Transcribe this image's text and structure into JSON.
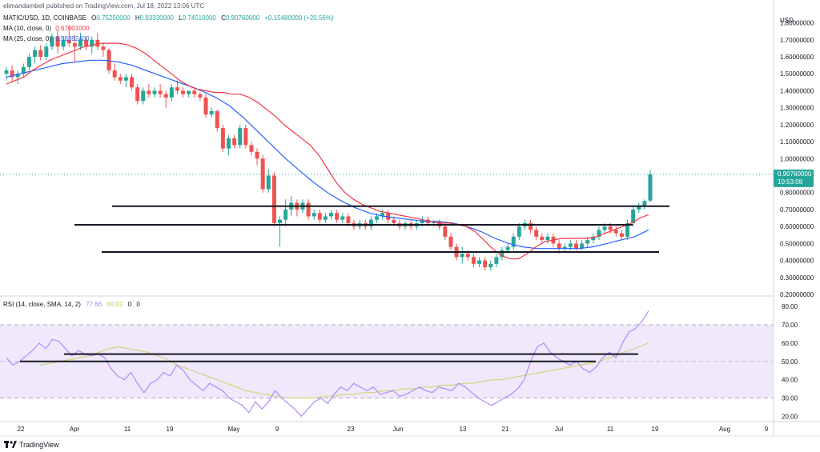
{
  "header": {
    "published": "elimandambell published on TradingView.com, Jul 18, 2022 13:06 UTC",
    "symbol": "MATIC/USD, 1D, COINBASE",
    "o_label": "O",
    "o_val": "0.75250000",
    "h_label": "H",
    "h_val": "0.93330000",
    "l_label": "L",
    "l_val": "0.74510000",
    "c_label": "C",
    "c_val": "0.90760000",
    "change": "+0.15480000 (+20.56%)",
    "ma10_label": "MA (10, close, 0)",
    "ma10_val": "0.67001000",
    "ma25_label": "MA (25, close, 0)",
    "ma25_val": "0.58392400"
  },
  "price_axis": {
    "currency": "USD",
    "ticks": [
      "1.80000000",
      "1.70000000",
      "1.60000000",
      "1.50000000",
      "1.40000000",
      "1.30000000",
      "1.20000000",
      "1.10000000",
      "1.00000000",
      "0.80000000",
      "0.70000000",
      "0.60000000",
      "0.50000000",
      "0.40000000",
      "0.30000000",
      "0.20000000"
    ],
    "last_price": "0.90760000",
    "countdown": "10:53:08"
  },
  "rsi": {
    "label": "RSI (14, close, SMA, 14, 2)",
    "val1": "77.66",
    "val2": "60.02",
    "val3": "0",
    "val4": "0",
    "ticks": [
      "80.00",
      "70.00",
      "60.00",
      "50.00",
      "40.00",
      "30.00",
      "20.00"
    ]
  },
  "time_axis": {
    "ticks": [
      "22",
      "Apr",
      "11",
      "19",
      "May",
      "9",
      "23",
      "Jun",
      "13",
      "21",
      "Jul",
      "11",
      "19",
      "Aug",
      "9"
    ]
  },
  "branding": {
    "logo_text": "TradingView"
  },
  "colors": {
    "up": "#26a69a",
    "down": "#ef5350",
    "ma10": "#f23645",
    "ma25": "#2962ff",
    "rsi_line": "#b388ff",
    "rsi_sma": "#d4d47a",
    "rsi_band": "#efe9fb",
    "price_line": "#26a69a"
  },
  "chart_data": [
    {
      "type": "candlestick",
      "title": "MATIC/USD, 1D, COINBASE",
      "ylabel": "USD",
      "ylim": [
        0.2,
        1.85
      ],
      "candles": [
        {
          "o": 1.5,
          "h": 1.54,
          "l": 1.46,
          "c": 1.52
        },
        {
          "o": 1.52,
          "h": 1.55,
          "l": 1.45,
          "c": 1.48
        },
        {
          "o": 1.48,
          "h": 1.52,
          "l": 1.44,
          "c": 1.5
        },
        {
          "o": 1.5,
          "h": 1.56,
          "l": 1.48,
          "c": 1.54
        },
        {
          "o": 1.54,
          "h": 1.62,
          "l": 1.52,
          "c": 1.6
        },
        {
          "o": 1.6,
          "h": 1.66,
          "l": 1.56,
          "c": 1.64
        },
        {
          "o": 1.64,
          "h": 1.67,
          "l": 1.58,
          "c": 1.6
        },
        {
          "o": 1.6,
          "h": 1.68,
          "l": 1.58,
          "c": 1.66
        },
        {
          "o": 1.66,
          "h": 1.74,
          "l": 1.64,
          "c": 1.72
        },
        {
          "o": 1.72,
          "h": 1.76,
          "l": 1.62,
          "c": 1.66
        },
        {
          "o": 1.66,
          "h": 1.72,
          "l": 1.64,
          "c": 1.7
        },
        {
          "o": 1.7,
          "h": 1.78,
          "l": 1.66,
          "c": 1.68
        },
        {
          "o": 1.68,
          "h": 1.73,
          "l": 1.57,
          "c": 1.66
        },
        {
          "o": 1.66,
          "h": 1.74,
          "l": 1.64,
          "c": 1.7
        },
        {
          "o": 1.7,
          "h": 1.72,
          "l": 1.64,
          "c": 1.66
        },
        {
          "o": 1.66,
          "h": 1.72,
          "l": 1.62,
          "c": 1.7
        },
        {
          "o": 1.7,
          "h": 1.74,
          "l": 1.64,
          "c": 1.66
        },
        {
          "o": 1.66,
          "h": 1.68,
          "l": 1.6,
          "c": 1.64
        },
        {
          "o": 1.64,
          "h": 1.65,
          "l": 1.5,
          "c": 1.52
        },
        {
          "o": 1.52,
          "h": 1.56,
          "l": 1.46,
          "c": 1.48
        },
        {
          "o": 1.48,
          "h": 1.5,
          "l": 1.44,
          "c": 1.46
        },
        {
          "o": 1.46,
          "h": 1.5,
          "l": 1.42,
          "c": 1.48
        },
        {
          "o": 1.48,
          "h": 1.5,
          "l": 1.4,
          "c": 1.42
        },
        {
          "o": 1.42,
          "h": 1.44,
          "l": 1.32,
          "c": 1.34
        },
        {
          "o": 1.34,
          "h": 1.42,
          "l": 1.32,
          "c": 1.4
        },
        {
          "o": 1.4,
          "h": 1.44,
          "l": 1.36,
          "c": 1.38
        },
        {
          "o": 1.38,
          "h": 1.42,
          "l": 1.36,
          "c": 1.4
        },
        {
          "o": 1.4,
          "h": 1.44,
          "l": 1.36,
          "c": 1.38
        },
        {
          "o": 1.38,
          "h": 1.4,
          "l": 1.3,
          "c": 1.36
        },
        {
          "o": 1.36,
          "h": 1.44,
          "l": 1.34,
          "c": 1.42
        },
        {
          "o": 1.42,
          "h": 1.46,
          "l": 1.38,
          "c": 1.4
        },
        {
          "o": 1.4,
          "h": 1.42,
          "l": 1.36,
          "c": 1.38
        },
        {
          "o": 1.38,
          "h": 1.4,
          "l": 1.36,
          "c": 1.4
        },
        {
          "o": 1.4,
          "h": 1.42,
          "l": 1.36,
          "c": 1.38
        },
        {
          "o": 1.38,
          "h": 1.39,
          "l": 1.34,
          "c": 1.36
        },
        {
          "o": 1.36,
          "h": 1.38,
          "l": 1.24,
          "c": 1.26
        },
        {
          "o": 1.26,
          "h": 1.3,
          "l": 1.24,
          "c": 1.28
        },
        {
          "o": 1.28,
          "h": 1.29,
          "l": 1.16,
          "c": 1.18
        },
        {
          "o": 1.18,
          "h": 1.2,
          "l": 1.04,
          "c": 1.06
        },
        {
          "o": 1.06,
          "h": 1.14,
          "l": 1.02,
          "c": 1.12
        },
        {
          "o": 1.12,
          "h": 1.14,
          "l": 1.06,
          "c": 1.08
        },
        {
          "o": 1.08,
          "h": 1.2,
          "l": 1.06,
          "c": 1.18
        },
        {
          "o": 1.18,
          "h": 1.2,
          "l": 1.06,
          "c": 1.08
        },
        {
          "o": 1.08,
          "h": 1.1,
          "l": 1.02,
          "c": 1.04
        },
        {
          "o": 1.04,
          "h": 1.06,
          "l": 0.96,
          "c": 1.0
        },
        {
          "o": 1.0,
          "h": 1.02,
          "l": 0.8,
          "c": 0.82
        },
        {
          "o": 0.82,
          "h": 0.94,
          "l": 0.8,
          "c": 0.9
        },
        {
          "o": 0.9,
          "h": 0.92,
          "l": 0.6,
          "c": 0.62
        },
        {
          "o": 0.62,
          "h": 0.66,
          "l": 0.48,
          "c": 0.64
        },
        {
          "o": 0.64,
          "h": 0.76,
          "l": 0.6,
          "c": 0.7
        },
        {
          "o": 0.7,
          "h": 0.78,
          "l": 0.66,
          "c": 0.74
        },
        {
          "o": 0.74,
          "h": 0.76,
          "l": 0.66,
          "c": 0.7
        },
        {
          "o": 0.7,
          "h": 0.76,
          "l": 0.68,
          "c": 0.74
        },
        {
          "o": 0.74,
          "h": 0.76,
          "l": 0.64,
          "c": 0.66
        },
        {
          "o": 0.66,
          "h": 0.7,
          "l": 0.64,
          "c": 0.68
        },
        {
          "o": 0.68,
          "h": 0.7,
          "l": 0.62,
          "c": 0.64
        },
        {
          "o": 0.64,
          "h": 0.68,
          "l": 0.62,
          "c": 0.66
        },
        {
          "o": 0.66,
          "h": 0.7,
          "l": 0.64,
          "c": 0.68
        },
        {
          "o": 0.68,
          "h": 0.7,
          "l": 0.62,
          "c": 0.64
        },
        {
          "o": 0.64,
          "h": 0.68,
          "l": 0.62,
          "c": 0.66
        },
        {
          "o": 0.66,
          "h": 0.68,
          "l": 0.6,
          "c": 0.62
        },
        {
          "o": 0.62,
          "h": 0.64,
          "l": 0.58,
          "c": 0.6
        },
        {
          "o": 0.6,
          "h": 0.64,
          "l": 0.58,
          "c": 0.62
        },
        {
          "o": 0.62,
          "h": 0.64,
          "l": 0.58,
          "c": 0.6
        },
        {
          "o": 0.6,
          "h": 0.66,
          "l": 0.58,
          "c": 0.64
        },
        {
          "o": 0.64,
          "h": 0.68,
          "l": 0.62,
          "c": 0.66
        },
        {
          "o": 0.66,
          "h": 0.7,
          "l": 0.64,
          "c": 0.68
        },
        {
          "o": 0.68,
          "h": 0.7,
          "l": 0.62,
          "c": 0.64
        },
        {
          "o": 0.64,
          "h": 0.66,
          "l": 0.6,
          "c": 0.62
        },
        {
          "o": 0.62,
          "h": 0.64,
          "l": 0.58,
          "c": 0.6
        },
        {
          "o": 0.6,
          "h": 0.63,
          "l": 0.58,
          "c": 0.62
        },
        {
          "o": 0.62,
          "h": 0.64,
          "l": 0.58,
          "c": 0.6
        },
        {
          "o": 0.6,
          "h": 0.64,
          "l": 0.58,
          "c": 0.62
        },
        {
          "o": 0.62,
          "h": 0.66,
          "l": 0.6,
          "c": 0.64
        },
        {
          "o": 0.64,
          "h": 0.66,
          "l": 0.6,
          "c": 0.62
        },
        {
          "o": 0.62,
          "h": 0.64,
          "l": 0.6,
          "c": 0.63
        },
        {
          "o": 0.63,
          "h": 0.64,
          "l": 0.58,
          "c": 0.6
        },
        {
          "o": 0.6,
          "h": 0.61,
          "l": 0.52,
          "c": 0.54
        },
        {
          "o": 0.54,
          "h": 0.56,
          "l": 0.46,
          "c": 0.48
        },
        {
          "o": 0.48,
          "h": 0.5,
          "l": 0.4,
          "c": 0.42
        },
        {
          "o": 0.42,
          "h": 0.48,
          "l": 0.38,
          "c": 0.44
        },
        {
          "o": 0.44,
          "h": 0.46,
          "l": 0.4,
          "c": 0.42
        },
        {
          "o": 0.42,
          "h": 0.44,
          "l": 0.36,
          "c": 0.38
        },
        {
          "o": 0.38,
          "h": 0.42,
          "l": 0.36,
          "c": 0.4
        },
        {
          "o": 0.4,
          "h": 0.42,
          "l": 0.34,
          "c": 0.36
        },
        {
          "o": 0.36,
          "h": 0.4,
          "l": 0.34,
          "c": 0.38
        },
        {
          "o": 0.38,
          "h": 0.44,
          "l": 0.36,
          "c": 0.42
        },
        {
          "o": 0.42,
          "h": 0.48,
          "l": 0.4,
          "c": 0.46
        },
        {
          "o": 0.46,
          "h": 0.5,
          "l": 0.44,
          "c": 0.48
        },
        {
          "o": 0.48,
          "h": 0.56,
          "l": 0.46,
          "c": 0.54
        },
        {
          "o": 0.54,
          "h": 0.62,
          "l": 0.52,
          "c": 0.6
        },
        {
          "o": 0.6,
          "h": 0.64,
          "l": 0.58,
          "c": 0.62
        },
        {
          "o": 0.62,
          "h": 0.64,
          "l": 0.56,
          "c": 0.58
        },
        {
          "o": 0.58,
          "h": 0.6,
          "l": 0.52,
          "c": 0.54
        },
        {
          "o": 0.54,
          "h": 0.56,
          "l": 0.5,
          "c": 0.52
        },
        {
          "o": 0.52,
          "h": 0.56,
          "l": 0.5,
          "c": 0.54
        },
        {
          "o": 0.54,
          "h": 0.56,
          "l": 0.48,
          "c": 0.5
        },
        {
          "o": 0.5,
          "h": 0.52,
          "l": 0.44,
          "c": 0.47
        },
        {
          "o": 0.47,
          "h": 0.5,
          "l": 0.45,
          "c": 0.48
        },
        {
          "o": 0.48,
          "h": 0.52,
          "l": 0.46,
          "c": 0.5
        },
        {
          "o": 0.5,
          "h": 0.52,
          "l": 0.46,
          "c": 0.47
        },
        {
          "o": 0.47,
          "h": 0.52,
          "l": 0.46,
          "c": 0.5
        },
        {
          "o": 0.5,
          "h": 0.54,
          "l": 0.48,
          "c": 0.52
        },
        {
          "o": 0.52,
          "h": 0.56,
          "l": 0.5,
          "c": 0.54
        },
        {
          "o": 0.54,
          "h": 0.6,
          "l": 0.52,
          "c": 0.58
        },
        {
          "o": 0.58,
          "h": 0.62,
          "l": 0.56,
          "c": 0.6
        },
        {
          "o": 0.6,
          "h": 0.62,
          "l": 0.56,
          "c": 0.58
        },
        {
          "o": 0.58,
          "h": 0.6,
          "l": 0.54,
          "c": 0.56
        },
        {
          "o": 0.56,
          "h": 0.58,
          "l": 0.52,
          "c": 0.54
        },
        {
          "o": 0.54,
          "h": 0.64,
          "l": 0.52,
          "c": 0.62
        },
        {
          "o": 0.62,
          "h": 0.72,
          "l": 0.6,
          "c": 0.7
        },
        {
          "o": 0.7,
          "h": 0.74,
          "l": 0.68,
          "c": 0.72
        },
        {
          "o": 0.72,
          "h": 0.76,
          "l": 0.7,
          "c": 0.75
        },
        {
          "o": 0.7525,
          "h": 0.9333,
          "l": 0.7451,
          "c": 0.9076
        }
      ],
      "ma10": [
        1.44,
        1.46,
        1.48,
        1.52,
        1.55,
        1.58,
        1.6,
        1.62,
        1.64,
        1.66,
        1.67,
        1.68,
        1.68,
        1.68,
        1.67,
        1.65,
        1.62,
        1.58,
        1.54,
        1.5,
        1.46,
        1.43,
        1.41,
        1.4,
        1.39,
        1.39,
        1.38,
        1.38,
        1.36,
        1.33,
        1.29,
        1.25,
        1.2,
        1.16,
        1.12,
        1.08,
        1.02,
        0.94,
        0.86,
        0.8,
        0.76,
        0.73,
        0.71,
        0.69,
        0.68,
        0.67,
        0.66,
        0.65,
        0.64,
        0.63,
        0.62,
        0.62,
        0.61,
        0.6,
        0.57,
        0.52,
        0.47,
        0.43,
        0.41,
        0.41,
        0.44,
        0.48,
        0.51,
        0.52,
        0.53,
        0.53,
        0.53,
        0.53,
        0.54,
        0.56,
        0.58,
        0.6,
        0.62,
        0.65,
        0.67
      ],
      "ma25": [
        1.48,
        1.5,
        1.52,
        1.54,
        1.56,
        1.57,
        1.58,
        1.58,
        1.57,
        1.55,
        1.52,
        1.49,
        1.46,
        1.43,
        1.4,
        1.36,
        1.31,
        1.24,
        1.16,
        1.08,
        1.0,
        0.93,
        0.86,
        0.8,
        0.75,
        0.71,
        0.68,
        0.66,
        0.65,
        0.64,
        0.63,
        0.63,
        0.62,
        0.6,
        0.57,
        0.53,
        0.5,
        0.48,
        0.47,
        0.47,
        0.47,
        0.47,
        0.48,
        0.5,
        0.52,
        0.54,
        0.58
      ],
      "horizontal_lines": [
        0.72,
        0.61,
        0.45
      ]
    },
    {
      "type": "line",
      "title": "RSI (14, close, SMA, 14, 2)",
      "ylim": [
        18,
        84
      ],
      "overbought": 70,
      "midline": 50,
      "oversold": 30,
      "rsi": [
        52,
        48,
        50,
        53,
        56,
        60,
        57,
        62,
        61,
        57,
        53,
        56,
        54,
        53,
        54,
        52,
        46,
        42,
        40,
        44,
        38,
        33,
        38,
        40,
        44,
        42,
        48,
        45,
        40,
        37,
        34,
        38,
        36,
        34,
        30,
        28,
        26,
        22,
        28,
        24,
        28,
        34,
        30,
        27,
        24,
        20,
        24,
        28,
        30,
        27,
        32,
        36,
        34,
        38,
        36,
        34,
        36,
        32,
        33,
        34,
        31,
        32,
        34,
        36,
        34,
        33,
        36,
        35,
        34,
        38,
        36,
        33,
        30,
        28,
        26,
        28,
        30,
        32,
        35,
        40,
        50,
        58,
        60,
        55,
        52,
        50,
        48,
        50,
        46,
        44,
        47,
        52,
        55,
        52,
        60,
        66,
        68,
        72,
        77.66
      ],
      "rsi_sma": [
        48,
        49,
        50,
        51,
        52,
        53,
        55,
        57,
        58,
        57,
        56,
        55,
        53,
        51,
        48,
        46,
        44,
        42,
        40,
        38,
        36,
        34,
        33,
        32,
        31,
        30,
        30,
        30,
        30,
        31,
        31,
        32,
        32,
        33,
        33,
        34,
        34,
        35,
        35,
        36,
        36,
        37,
        37,
        38,
        38,
        39,
        40,
        40,
        41,
        42,
        43,
        44,
        45,
        46,
        47,
        48,
        49,
        50,
        52,
        54,
        56,
        58,
        60.02
      ],
      "horizontal_lines": [
        54,
        50
      ]
    }
  ]
}
